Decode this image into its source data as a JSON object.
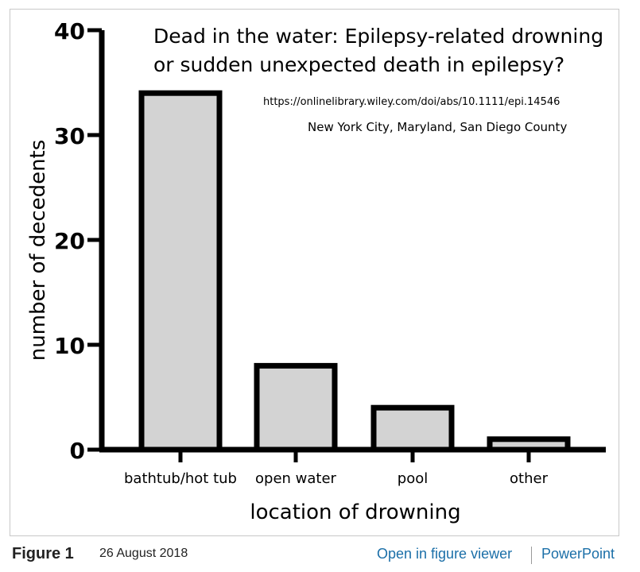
{
  "chart_data": {
    "type": "bar",
    "title": "Dead in the water: Epilepsy-related drowning or sudden unexpected death in epilepsy?",
    "title_lines": [
      "Dead in the water: Epilepsy-related drowning",
      "or sudden unexpected death in epilepsy?"
    ],
    "source_url": "https://onlinelibrary.wiley.com/doi/abs/10.1111/epi.14546",
    "subtitle": "New York City, Maryland, San Diego County",
    "categories": [
      "bathtub/hot tub",
      "open water",
      "pool",
      "other"
    ],
    "values": [
      34,
      8,
      4,
      1
    ],
    "xlabel": "location of drowning",
    "ylabel": "number of decedents",
    "ylim": [
      0,
      40
    ],
    "yticks": [
      0,
      10,
      20,
      30,
      40
    ],
    "grid": false,
    "bar_color": "#d3d3d3",
    "edge_color": "#000000"
  },
  "caption": {
    "label": "Figure 1",
    "date": "26 August 2018",
    "open_viewer": "Open in figure viewer",
    "powerpoint": "PowerPoint",
    "link_color": "#1b6fa8"
  }
}
